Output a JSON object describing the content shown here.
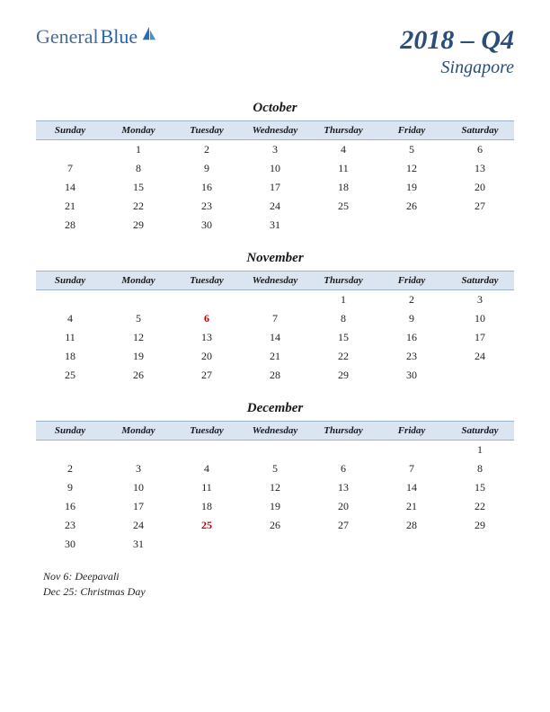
{
  "logo": {
    "part1": "General",
    "part2": "Blue"
  },
  "title": {
    "main": "2018 – Q4",
    "sub": "Singapore"
  },
  "day_headers": [
    "Sunday",
    "Monday",
    "Tuesday",
    "Wednesday",
    "Thursday",
    "Friday",
    "Saturday"
  ],
  "header_style": {
    "background_color": "#dbe5f1",
    "border_color": "#9bb3d0",
    "font_size": 11
  },
  "months": [
    {
      "name": "October",
      "weeks": [
        [
          "",
          "1",
          "2",
          "3",
          "4",
          "5",
          "6"
        ],
        [
          "7",
          "8",
          "9",
          "10",
          "11",
          "12",
          "13"
        ],
        [
          "14",
          "15",
          "16",
          "17",
          "18",
          "19",
          "20"
        ],
        [
          "21",
          "22",
          "23",
          "24",
          "25",
          "26",
          "27"
        ],
        [
          "28",
          "29",
          "30",
          "31",
          "",
          "",
          ""
        ]
      ],
      "holidays": []
    },
    {
      "name": "November",
      "weeks": [
        [
          "",
          "",
          "",
          "",
          "1",
          "2",
          "3"
        ],
        [
          "4",
          "5",
          "6",
          "7",
          "8",
          "9",
          "10"
        ],
        [
          "11",
          "12",
          "13",
          "14",
          "15",
          "16",
          "17"
        ],
        [
          "18",
          "19",
          "20",
          "21",
          "22",
          "23",
          "24"
        ],
        [
          "25",
          "26",
          "27",
          "28",
          "29",
          "30",
          ""
        ]
      ],
      "holidays": [
        "6"
      ]
    },
    {
      "name": "December",
      "weeks": [
        [
          "",
          "",
          "",
          "",
          "",
          "",
          "1"
        ],
        [
          "2",
          "3",
          "4",
          "5",
          "6",
          "7",
          "8"
        ],
        [
          "9",
          "10",
          "11",
          "12",
          "13",
          "14",
          "15"
        ],
        [
          "16",
          "17",
          "18",
          "19",
          "20",
          "21",
          "22"
        ],
        [
          "23",
          "24",
          "25",
          "26",
          "27",
          "28",
          "29"
        ],
        [
          "30",
          "31",
          "",
          "",
          "",
          "",
          ""
        ]
      ],
      "holidays": [
        "25"
      ]
    }
  ],
  "notes": [
    "Nov 6: Deepavali",
    "Dec 25: Christmas Day"
  ],
  "colors": {
    "title_color": "#2a4d7a",
    "holiday_color": "#c00000",
    "text_color": "#222222",
    "background": "#ffffff"
  }
}
